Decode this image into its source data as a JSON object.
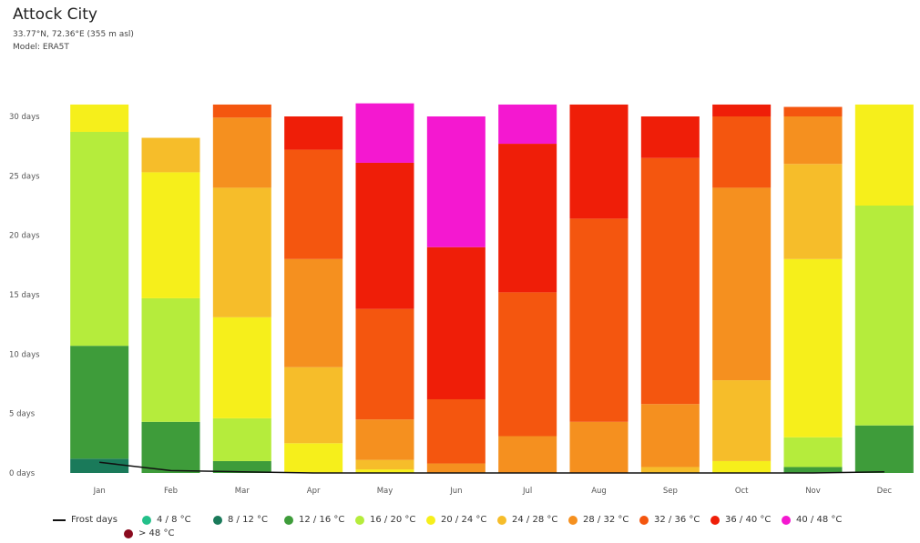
{
  "header": {
    "title": "Attock City",
    "coords": "33.77°N, 72.36°E (355 m asl)",
    "model": "Model: ERA5T"
  },
  "chart_data": {
    "type": "bar",
    "stacked": true,
    "categories": [
      "Jan",
      "Feb",
      "Mar",
      "Apr",
      "May",
      "Jun",
      "Jul",
      "Aug",
      "Sep",
      "Oct",
      "Nov",
      "Dec"
    ],
    "y_ticks": [
      "0 days",
      "5 days",
      "10 days",
      "15 days",
      "20 days",
      "25 days",
      "30 days"
    ],
    "ylim": [
      0,
      31
    ],
    "series": [
      {
        "name": "8 / 12 °C",
        "color": "#1a7a5a",
        "values": [
          1.2,
          0,
          0,
          0,
          0,
          0,
          0,
          0,
          0,
          0,
          0,
          0
        ]
      },
      {
        "name": "12 / 16 °C",
        "color": "#3e9c3a",
        "values": [
          9.5,
          4.3,
          1,
          0,
          0,
          0,
          0,
          0,
          0,
          0,
          0.5,
          4.0
        ]
      },
      {
        "name": "16 / 20 °C",
        "color": "#b5ec3c",
        "values": [
          18.0,
          10.4,
          3.6,
          0,
          0,
          0,
          0,
          0,
          0,
          0,
          2.5,
          18.5
        ]
      },
      {
        "name": "20 / 24 °C",
        "color": "#f6ef1b",
        "values": [
          2.3,
          10.6,
          8.5,
          2.5,
          0.3,
          0,
          0,
          0,
          0,
          1.0,
          15.0,
          8.5
        ]
      },
      {
        "name": "24 / 28 °C",
        "color": "#f6bd2a",
        "values": [
          0,
          2.9,
          10.9,
          6.4,
          0.8,
          0,
          0,
          0,
          0.5,
          6.8,
          8.0,
          0
        ]
      },
      {
        "name": "28 / 32 °C",
        "color": "#f5901f",
        "values": [
          0,
          0,
          5.9,
          9.1,
          3.4,
          0.8,
          3.1,
          4.3,
          5.3,
          16.2,
          4.0,
          0
        ]
      },
      {
        "name": "32 / 36 °C",
        "color": "#f4560f",
        "values": [
          0,
          0,
          1.1,
          9.2,
          9.3,
          5.4,
          12.1,
          17.1,
          20.7,
          6.0,
          0.8,
          0
        ]
      },
      {
        "name": "36 / 40 °C",
        "color": "#ef1e08",
        "values": [
          0,
          0,
          0,
          2.8,
          12.3,
          12.8,
          12.5,
          9.6,
          3.5,
          1.0,
          0,
          0
        ]
      },
      {
        "name": "40 / 48 °C",
        "color": "#f418d0",
        "values": [
          0,
          0,
          0,
          0,
          5.0,
          11.0,
          3.3,
          0,
          0,
          0,
          0,
          0
        ]
      }
    ],
    "frost_days": {
      "name": "Frost days",
      "values": [
        0.9,
        0.2,
        0.1,
        0,
        0,
        0,
        0,
        0,
        0,
        0,
        0,
        0.1
      ]
    },
    "legend": [
      {
        "label": "Frost days",
        "kind": "line",
        "color": "#111111"
      },
      {
        "label": "4 / 8 °C",
        "kind": "dot",
        "color": "#24c08a"
      },
      {
        "label": "8 / 12 °C",
        "kind": "dot",
        "color": "#1a7a5a"
      },
      {
        "label": "12 / 16 °C",
        "kind": "dot",
        "color": "#3e9c3a"
      },
      {
        "label": "16 / 20 °C",
        "kind": "dot",
        "color": "#b5ec3c"
      },
      {
        "label": "20 / 24 °C",
        "kind": "dot",
        "color": "#f6ef1b"
      },
      {
        "label": "24 / 28 °C",
        "kind": "dot",
        "color": "#f6bd2a"
      },
      {
        "label": "28 / 32 °C",
        "kind": "dot",
        "color": "#f5901f"
      },
      {
        "label": "32 / 36 °C",
        "kind": "dot",
        "color": "#f4560f"
      },
      {
        "label": "36 / 40 °C",
        "kind": "dot",
        "color": "#ef1e08"
      },
      {
        "label": "40 / 48 °C",
        "kind": "dot",
        "color": "#f418d0"
      },
      {
        "label": "> 48 °C",
        "kind": "dot",
        "color": "#8a0a1e"
      }
    ]
  }
}
